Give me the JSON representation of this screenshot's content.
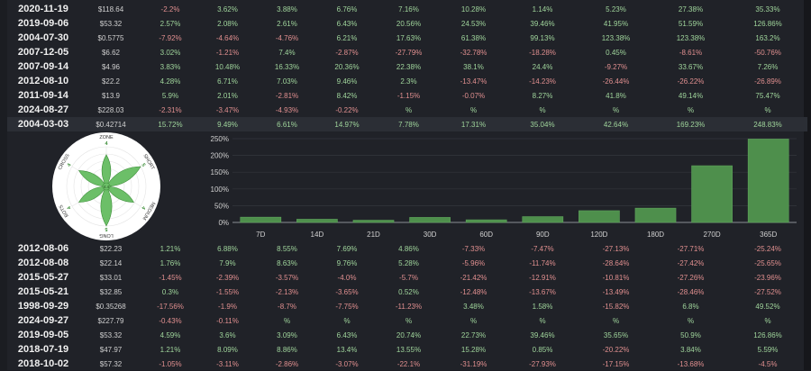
{
  "colors": {
    "positive": "#9fd49b",
    "negative": "#e08f8f",
    "bar": "#4e8f4c",
    "petal": "#6cbf68"
  },
  "top_rows": [
    {
      "date": "2020-11-19",
      "price": "$118.64",
      "values": [
        "-2.2%",
        "3.62%",
        "3.88%",
        "6.76%",
        "7.16%",
        "10.28%",
        "1.14%",
        "5.23%",
        "27.38%",
        "35.33%"
      ]
    },
    {
      "date": "2019-09-06",
      "price": "$53.32",
      "values": [
        "2.57%",
        "2.08%",
        "2.61%",
        "6.43%",
        "20.56%",
        "24.53%",
        "39.46%",
        "41.95%",
        "51.59%",
        "126.86%"
      ]
    },
    {
      "date": "2004-07-30",
      "price": "$0.5775",
      "values": [
        "-7.92%",
        "-4.64%",
        "-4.76%",
        "6.21%",
        "17.63%",
        "61.38%",
        "99.13%",
        "123.38%",
        "123.38%",
        "163.2%"
      ]
    },
    {
      "date": "2007-12-05",
      "price": "$6.62",
      "values": [
        "3.02%",
        "-1.21%",
        "7.4%",
        "-2.87%",
        "-27.79%",
        "-32.78%",
        "-18.28%",
        "0.45%",
        "-8.61%",
        "-50.76%"
      ]
    },
    {
      "date": "2007-09-14",
      "price": "$4.96",
      "values": [
        "3.83%",
        "10.48%",
        "16.33%",
        "20.36%",
        "22.38%",
        "38.1%",
        "24.4%",
        "-9.27%",
        "33.67%",
        "7.26%"
      ]
    },
    {
      "date": "2012-08-10",
      "price": "$22.2",
      "values": [
        "4.28%",
        "6.71%",
        "7.03%",
        "9.46%",
        "2.3%",
        "-13.47%",
        "-14.23%",
        "-26.44%",
        "-26.22%",
        "-26.89%"
      ]
    },
    {
      "date": "2011-09-14",
      "price": "$13.9",
      "values": [
        "5.9%",
        "2.01%",
        "-2.81%",
        "8.42%",
        "-1.15%",
        "-0.07%",
        "8.27%",
        "41.8%",
        "49.14%",
        "75.47%"
      ]
    },
    {
      "date": "2024-08-27",
      "price": "$228.03",
      "values": [
        "-2.31%",
        "-3.47%",
        "-4.93%",
        "-0.22%",
        "%",
        "%",
        "%",
        "%",
        "%",
        "%"
      ]
    },
    {
      "date": "2004-03-03",
      "price": "$0.42714",
      "values": [
        "15.72%",
        "9.49%",
        "6.61%",
        "14.97%",
        "7.78%",
        "17.31%",
        "35.04%",
        "42.64%",
        "169.23%",
        "248.83%"
      ]
    }
  ],
  "bottom_rows": [
    {
      "date": "2012-08-06",
      "price": "$22.23",
      "values": [
        "1.21%",
        "6.88%",
        "8.55%",
        "7.69%",
        "4.86%",
        "-7.33%",
        "-7.47%",
        "-27.13%",
        "-27.71%",
        "-25.24%"
      ]
    },
    {
      "date": "2012-08-08",
      "price": "$22.14",
      "values": [
        "1.76%",
        "7.9%",
        "8.63%",
        "9.76%",
        "5.28%",
        "-5.96%",
        "-11.74%",
        "-28.64%",
        "-27.42%",
        "-25.65%"
      ]
    },
    {
      "date": "2015-05-27",
      "price": "$33.01",
      "values": [
        "-1.45%",
        "-2.39%",
        "-3.57%",
        "-4.0%",
        "-5.7%",
        "-21.42%",
        "-12.91%",
        "-10.81%",
        "-27.26%",
        "-23.96%"
      ]
    },
    {
      "date": "2015-05-21",
      "price": "$32.85",
      "values": [
        "0.3%",
        "-1.55%",
        "-2.13%",
        "-3.65%",
        "0.52%",
        "-12.48%",
        "-13.67%",
        "-13.49%",
        "-28.46%",
        "-27.52%"
      ]
    },
    {
      "date": "1998-09-29",
      "price": "$0.35268",
      "values": [
        "-17.56%",
        "-1.9%",
        "-8.7%",
        "-7.75%",
        "-11.23%",
        "3.48%",
        "1.58%",
        "-15.82%",
        "6.8%",
        "49.52%"
      ]
    },
    {
      "date": "2024-09-27",
      "price": "$227.79",
      "values": [
        "-0.43%",
        "-0.11%",
        "%",
        "%",
        "%",
        "%",
        "%",
        "%",
        "%",
        "%"
      ]
    },
    {
      "date": "2019-09-05",
      "price": "$53.32",
      "values": [
        "4.59%",
        "3.6%",
        "3.09%",
        "6.43%",
        "20.74%",
        "22.73%",
        "39.46%",
        "35.65%",
        "50.9%",
        "126.86%"
      ]
    },
    {
      "date": "2018-07-19",
      "price": "$47.97",
      "values": [
        "1.21%",
        "8.09%",
        "8.86%",
        "13.4%",
        "13.55%",
        "15.28%",
        "0.85%",
        "-20.22%",
        "3.84%",
        "5.59%"
      ]
    },
    {
      "date": "2018-10-02",
      "price": "$57.32",
      "values": [
        "-1.05%",
        "-3.11%",
        "-2.86%",
        "-3.07%",
        "-22.1%",
        "-31.19%",
        "-27.93%",
        "-17.15%",
        "-13.68%",
        "-4.5%"
      ]
    }
  ],
  "radar": {
    "center_label": "4.4",
    "axes": [
      {
        "label": "ZONE",
        "value": 4
      },
      {
        "label": "SHORT",
        "value": 5
      },
      {
        "label": "MEDIUM",
        "value": 4
      },
      {
        "label": "LONG",
        "value": 5
      },
      {
        "label": "BOTS",
        "value": 4
      },
      {
        "label": "CROSS",
        "value": 4
      }
    ],
    "max": 5
  },
  "chart_data": {
    "type": "bar",
    "categories": [
      "7D",
      "14D",
      "21D",
      "30D",
      "60D",
      "90D",
      "120D",
      "180D",
      "270D",
      "365D"
    ],
    "values": [
      15.72,
      9.49,
      6.61,
      14.97,
      7.78,
      17.31,
      35.04,
      42.64,
      169.23,
      248.83
    ],
    "yticks": [
      "0%",
      "50%",
      "100%",
      "150%",
      "200%",
      "250%"
    ],
    "ylim": [
      0,
      250
    ],
    "grid": true,
    "title": "",
    "xlabel": "",
    "ylabel": ""
  }
}
